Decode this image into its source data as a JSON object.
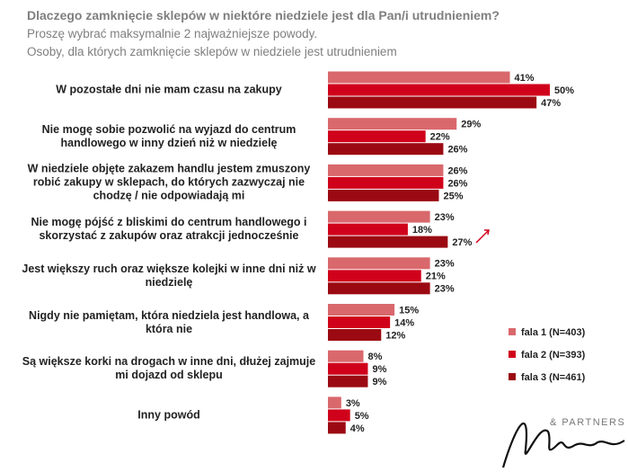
{
  "chart_data": {
    "type": "bar",
    "orientation": "horizontal",
    "title": "Dlaczego zamknięcie sklepów w niektóre niedziele jest dla Pan/i utrudnieniem?",
    "subtitle": "Proszę wybrać maksymalnie 2 najważniejsze powody.",
    "note": "Osoby, dla których zamknięcie sklepów w niedziele jest utrudnieniem",
    "categories": [
      "W pozostałe dni nie mam czasu na zakupy",
      "Nie mogę sobie pozwolić na wyjazd do centrum handlowego w inny dzień niż w niedzielę",
      "W niedziele objęte zakazem handlu jestem zmuszony robić zakupy w sklepach, do których zazwyczaj nie chodzę / nie odpowiadają mi",
      "Nie mogę pójść z bliskimi do centrum handlowego i skorzystać z zakupów oraz atrakcji jednocześnie",
      "Jest większy ruch oraz większe kolejki w inne dni niż w niedzielę",
      "Nigdy nie pamiętam, która niedziela jest handlowa, a która nie",
      "Są większe korki na drogach w inne dni, dłużej zajmuje mi dojazd od sklepu",
      "Inny powód"
    ],
    "series": [
      {
        "name": "fala 1 (N=403)",
        "color": "#d9686c",
        "values": [
          41,
          29,
          26,
          23,
          23,
          15,
          8,
          3
        ],
        "value_labels": [
          "41%",
          "29%",
          "26%",
          "23%",
          "23%",
          "15%",
          "8%",
          "3%"
        ]
      },
      {
        "name": "fala 2 (N=393)",
        "color": "#d0021b",
        "values": [
          50,
          22,
          26,
          18,
          21,
          14,
          9,
          5
        ],
        "value_labels": [
          "50%",
          "22%",
          "26%",
          "18%",
          "21%",
          "14%",
          "9%",
          "5%"
        ]
      },
      {
        "name": "fala 3 (N=461)",
        "color": "#9b0a12",
        "values": [
          47,
          26,
          25,
          27,
          23,
          12,
          9,
          4
        ],
        "value_labels": [
          "47%",
          "26%",
          "25%",
          "27%",
          "23%",
          "12%",
          "9%",
          "4%"
        ]
      }
    ],
    "legend": "right",
    "brand": "& PARTNERS"
  }
}
